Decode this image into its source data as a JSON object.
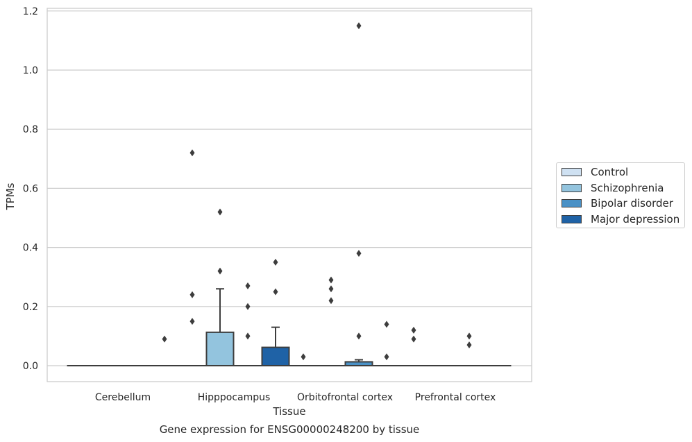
{
  "chart_data": {
    "type": "box",
    "title": "Gene expression for ENSG00000248200 by tissue",
    "xlabel": "Tissue",
    "ylabel": "TPMs",
    "ylim": [
      -0.055,
      1.21
    ],
    "yticks": [
      "0.0",
      "0.2",
      "0.4",
      "0.6",
      "0.8",
      "1.0",
      "1.2"
    ],
    "grid": "horizontal",
    "legend_position": "right",
    "categories": [
      "Cerebellum",
      "Hipppocampus",
      "Orbitofrontal cortex",
      "Prefrontal cortex"
    ],
    "series": [
      {
        "name": "Control",
        "color": "#cfe1f2",
        "boxes": [
          {
            "q1": 0,
            "median": 0,
            "q3": 0,
            "whisker_low": 0,
            "whisker_high": 0,
            "outliers": []
          },
          {
            "q1": 0,
            "median": 0,
            "q3": 0,
            "whisker_low": 0,
            "whisker_high": 0,
            "outliers": [
              0.72,
              0.24,
              0.15
            ]
          },
          {
            "q1": 0,
            "median": 0,
            "q3": 0,
            "whisker_low": 0,
            "whisker_high": 0,
            "outliers": [
              0.03
            ]
          },
          {
            "q1": 0,
            "median": 0,
            "q3": 0,
            "whisker_low": 0,
            "whisker_high": 0,
            "outliers": [
              0.12,
              0.09
            ]
          }
        ]
      },
      {
        "name": "Schizophrenia",
        "color": "#93c4de",
        "boxes": [
          {
            "q1": 0,
            "median": 0,
            "q3": 0,
            "whisker_low": 0,
            "whisker_high": 0,
            "outliers": []
          },
          {
            "q1": 0,
            "median": 0,
            "q3": 0.113,
            "whisker_low": 0,
            "whisker_high": 0.26,
            "outliers": [
              0.52,
              0.32
            ]
          },
          {
            "q1": 0,
            "median": 0,
            "q3": 0,
            "whisker_low": 0,
            "whisker_high": 0,
            "outliers": [
              0.29,
              0.26,
              0.22
            ]
          },
          {
            "q1": 0,
            "median": 0,
            "q3": 0,
            "whisker_low": 0,
            "whisker_high": 0,
            "outliers": []
          }
        ]
      },
      {
        "name": "Bipolar disorder",
        "color": "#4a91c6",
        "boxes": [
          {
            "q1": 0,
            "median": 0,
            "q3": 0,
            "whisker_low": 0,
            "whisker_high": 0,
            "outliers": []
          },
          {
            "q1": 0,
            "median": 0,
            "q3": 0,
            "whisker_low": 0,
            "whisker_high": 0,
            "outliers": [
              0.27,
              0.2,
              0.1
            ]
          },
          {
            "q1": 0,
            "median": 0,
            "q3": 0.013,
            "whisker_low": 0,
            "whisker_high": 0.02,
            "outliers": [
              1.15,
              0.38,
              0.1
            ]
          },
          {
            "q1": 0,
            "median": 0,
            "q3": 0,
            "whisker_low": 0,
            "whisker_high": 0,
            "outliers": [
              0.1,
              0.07
            ]
          }
        ]
      },
      {
        "name": "Major depression",
        "color": "#1f62a6",
        "boxes": [
          {
            "q1": 0,
            "median": 0,
            "q3": 0,
            "whisker_low": 0,
            "whisker_high": 0,
            "outliers": [
              0.09
            ]
          },
          {
            "q1": 0,
            "median": 0,
            "q3": 0.062,
            "whisker_low": 0,
            "whisker_high": 0.13,
            "outliers": [
              0.35,
              0.25
            ]
          },
          {
            "q1": 0,
            "median": 0,
            "q3": 0,
            "whisker_low": 0,
            "whisker_high": 0,
            "outliers": [
              0.14,
              0.03
            ]
          },
          {
            "q1": 0,
            "median": 0,
            "q3": 0,
            "whisker_low": 0,
            "whisker_high": 0,
            "outliers": []
          }
        ]
      }
    ]
  }
}
